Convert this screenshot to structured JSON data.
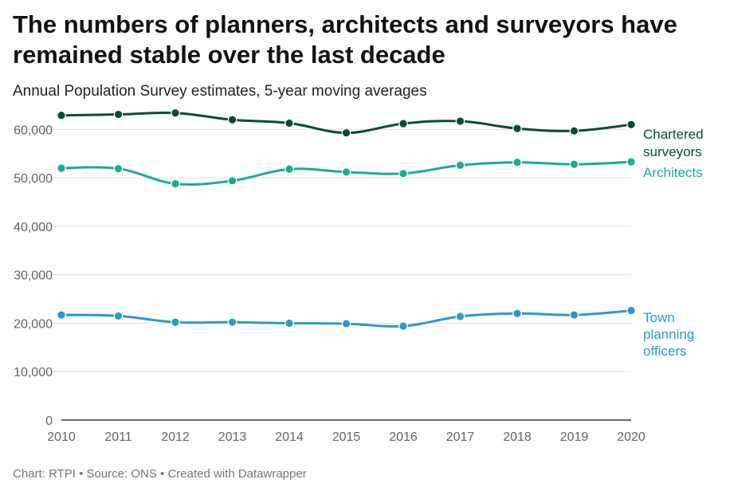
{
  "header": {
    "title": "The numbers of planners, architects and surveyors have remained stable over the last decade",
    "subtitle": "Annual Population Survey estimates, 5-year moving averages"
  },
  "footer": {
    "text": "Chart: RTPI • Source: ONS • Created with Datawrapper"
  },
  "chart_data": {
    "type": "line",
    "title": "The numbers of planners, architects and surveyors have remained stable over the last decade",
    "subtitle": "Annual Population Survey estimates, 5-year moving averages",
    "xlabel": "",
    "ylabel": "",
    "x": [
      2010,
      2011,
      2012,
      2013,
      2014,
      2015,
      2016,
      2017,
      2018,
      2019,
      2020
    ],
    "ylim": [
      0,
      65000
    ],
    "yticks": [
      0,
      10000,
      20000,
      30000,
      40000,
      50000,
      60000
    ],
    "ytick_labels": [
      "0",
      "10,000",
      "20,000",
      "30,000",
      "40,000",
      "50,000",
      "60,000"
    ],
    "grid": true,
    "legend": "direct labels at line ends",
    "series": [
      {
        "name": "Chartered surveyors",
        "label_lines": [
          "Chartered",
          "surveyors"
        ],
        "color": "#0b4b34",
        "values": [
          62900,
          63100,
          63400,
          62000,
          61300,
          59300,
          61200,
          61700,
          60200,
          59700,
          61000
        ]
      },
      {
        "name": "Architects",
        "label_lines": [
          "Architects"
        ],
        "color": "#1bab93",
        "values": [
          52000,
          51900,
          48800,
          49400,
          51800,
          51200,
          50900,
          52600,
          53200,
          52800,
          53300
        ]
      },
      {
        "name": "Town planning officers",
        "label_lines": [
          "Town",
          "planning",
          "officers"
        ],
        "color": "#2a9bc4",
        "values": [
          21700,
          21500,
          20200,
          20200,
          20000,
          19900,
          19400,
          21400,
          22000,
          21700,
          22600
        ]
      }
    ]
  }
}
